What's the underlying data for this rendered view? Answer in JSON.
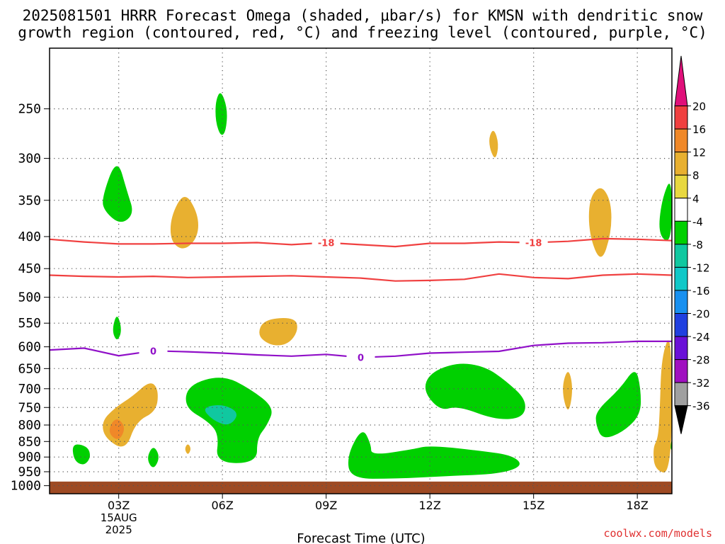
{
  "title_line1": "2025081501 HRRR Forecast Omega (shaded, μbar/s) for KMSN with dendritic snow",
  "title_line2": "growth region (contoured, red, °C) and freezing level (contoured, purple, °C)",
  "credit": "coolwx.com/models",
  "chart_data": {
    "type": "time-height cross section",
    "xlabel": "Forecast Time (UTC)",
    "ylabel": "",
    "x_ticks": [
      {
        "hour": 3,
        "label": "03Z",
        "sub1": "15AUG",
        "sub2": "2025"
      },
      {
        "hour": 6,
        "label": "06Z"
      },
      {
        "hour": 9,
        "label": "09Z"
      },
      {
        "hour": 12,
        "label": "12Z"
      },
      {
        "hour": 15,
        "label": "15Z"
      },
      {
        "hour": 18,
        "label": "18Z"
      }
    ],
    "x_range_hours": [
      1.0,
      19.0
    ],
    "y_levels_hPa": [
      250,
      300,
      350,
      400,
      450,
      500,
      550,
      600,
      650,
      700,
      750,
      800,
      850,
      900,
      950,
      1000
    ],
    "y_scale": "log-pressure, inverted",
    "y_range_hPa": [
      200,
      1030
    ],
    "grid": true,
    "colorbar": {
      "label_values": [
        20,
        16,
        12,
        8,
        4,
        -4,
        -8,
        -12,
        -16,
        -20,
        -24,
        -28,
        -32,
        -36
      ],
      "bins": [
        {
          "from": 20,
          "to": 24,
          "color": "#e0107a"
        },
        {
          "from": 16,
          "to": 20,
          "color": "#f04040"
        },
        {
          "from": 12,
          "to": 16,
          "color": "#f08828"
        },
        {
          "from": 8,
          "to": 12,
          "color": "#e8b030"
        },
        {
          "from": 4,
          "to": 8,
          "color": "#e8d840"
        },
        {
          "from": -4,
          "to": 4,
          "color": "#ffffff"
        },
        {
          "from": -8,
          "to": -4,
          "color": "#00d000"
        },
        {
          "from": -12,
          "to": -8,
          "color": "#10c8a0"
        },
        {
          "from": -16,
          "to": -12,
          "color": "#10c8c8"
        },
        {
          "from": -20,
          "to": -16,
          "color": "#1890f0"
        },
        {
          "from": -24,
          "to": -20,
          "color": "#2040e0"
        },
        {
          "from": -28,
          "to": -24,
          "color": "#6a10d8"
        },
        {
          "from": -32,
          "to": -28,
          "color": "#a010c0"
        },
        {
          "from": -36,
          "to": -32,
          "color": "#a0a0a0"
        },
        {
          "from": -40,
          "to": -36,
          "color": "#000000"
        }
      ]
    },
    "contours": [
      {
        "name": "-18",
        "label": "-18",
        "color": "#f04040",
        "points": [
          [
            1.0,
            404
          ],
          [
            2.0,
            408
          ],
          [
            3.0,
            411
          ],
          [
            4.0,
            411
          ],
          [
            5.0,
            410
          ],
          [
            6.0,
            410
          ],
          [
            7.0,
            409
          ],
          [
            8.0,
            412
          ],
          [
            9.0,
            409
          ],
          [
            10.0,
            412
          ],
          [
            11.0,
            415
          ],
          [
            12.0,
            410
          ],
          [
            13.0,
            410
          ],
          [
            14.0,
            408
          ],
          [
            15.0,
            409
          ],
          [
            16.0,
            407
          ],
          [
            17.0,
            403
          ],
          [
            18.0,
            404
          ],
          [
            19.0,
            406
          ]
        ],
        "label_hours": [
          9.0,
          15.0
        ]
      },
      {
        "name": "-12",
        "label": "",
        "color": "#f04040",
        "points": [
          [
            1.0,
            461
          ],
          [
            2.0,
            463
          ],
          [
            3.0,
            464
          ],
          [
            4.0,
            463
          ],
          [
            5.0,
            465
          ],
          [
            6.0,
            464
          ],
          [
            7.0,
            463
          ],
          [
            8.0,
            462
          ],
          [
            9.0,
            464
          ],
          [
            10.0,
            466
          ],
          [
            11.0,
            471
          ],
          [
            12.0,
            470
          ],
          [
            13.0,
            468
          ],
          [
            14.0,
            459
          ],
          [
            15.0,
            465
          ],
          [
            16.0,
            467
          ],
          [
            17.0,
            461
          ],
          [
            18.0,
            459
          ],
          [
            19.0,
            461
          ]
        ],
        "label_hours": []
      },
      {
        "name": "0",
        "label": "0",
        "color": "#9010c8",
        "points": [
          [
            1.0,
            607
          ],
          [
            2.0,
            603
          ],
          [
            3.0,
            620
          ],
          [
            4.0,
            609
          ],
          [
            5.0,
            611
          ],
          [
            6.0,
            614
          ],
          [
            7.0,
            618
          ],
          [
            8.0,
            621
          ],
          [
            9.0,
            617
          ],
          [
            10.0,
            624
          ],
          [
            11.0,
            621
          ],
          [
            12.0,
            614
          ],
          [
            13.0,
            612
          ],
          [
            14.0,
            610
          ],
          [
            15.0,
            597
          ],
          [
            16.0,
            592
          ],
          [
            17.0,
            591
          ],
          [
            18.0,
            588
          ],
          [
            19.0,
            588
          ]
        ],
        "label_hours": [
          4.0,
          10.0
        ]
      }
    ],
    "shaded_regions": [
      {
        "bin": -8,
        "points": [
          [
            2.95,
            298
          ],
          [
            3.25,
            340
          ],
          [
            3.45,
            368
          ],
          [
            3.05,
            383
          ],
          [
            2.6,
            365
          ],
          [
            2.5,
            348
          ]
        ]
      },
      {
        "bin": -8,
        "points": [
          [
            5.95,
            233
          ],
          [
            6.15,
            250
          ],
          [
            6.1,
            272
          ],
          [
            5.95,
            277
          ],
          [
            5.8,
            262
          ],
          [
            5.8,
            243
          ]
        ]
      },
      {
        "bin": 8,
        "points": [
          [
            4.9,
            338
          ],
          [
            5.3,
            368
          ],
          [
            5.3,
            400
          ],
          [
            4.9,
            422
          ],
          [
            4.5,
            408
          ],
          [
            4.5,
            372
          ]
        ]
      },
      {
        "bin": 8,
        "points": [
          [
            13.85,
            268
          ],
          [
            14.0,
            285
          ],
          [
            13.9,
            302
          ],
          [
            13.75,
            292
          ],
          [
            13.7,
            278
          ]
        ]
      },
      {
        "bin": 8,
        "points": [
          [
            16.95,
            330
          ],
          [
            17.25,
            352
          ],
          [
            17.25,
            395
          ],
          [
            16.95,
            443
          ],
          [
            16.6,
            397
          ],
          [
            16.6,
            348
          ]
        ]
      },
      {
        "bin": -8,
        "points": [
          [
            19.0,
            318
          ],
          [
            19.0,
            412
          ],
          [
            18.6,
            398
          ],
          [
            18.7,
            350
          ]
        ]
      },
      {
        "bin": 8,
        "points": [
          [
            7.2,
            542
          ],
          [
            8.1,
            538
          ],
          [
            8.2,
            565
          ],
          [
            7.9,
            595
          ],
          [
            7.4,
            598
          ],
          [
            7.0,
            575
          ]
        ]
      },
      {
        "bin": -8,
        "points": [
          [
            2.95,
            528
          ],
          [
            3.1,
            565
          ],
          [
            2.95,
            590
          ],
          [
            2.8,
            565
          ]
        ]
      },
      {
        "bin": 8,
        "points": [
          [
            3.9,
            680
          ],
          [
            4.15,
            700
          ],
          [
            4.1,
            760
          ],
          [
            3.5,
            790
          ],
          [
            3.2,
            880
          ],
          [
            2.6,
            840
          ],
          [
            2.5,
            790
          ],
          [
            2.9,
            750
          ],
          [
            3.4,
            720
          ]
        ]
      },
      {
        "bin": 12,
        "points": [
          [
            3.0,
            780
          ],
          [
            3.2,
            810
          ],
          [
            3.0,
            850
          ],
          [
            2.7,
            825
          ],
          [
            2.8,
            790
          ]
        ]
      },
      {
        "bin": -8,
        "points": [
          [
            5.0,
            690
          ],
          [
            6.0,
            665
          ],
          [
            6.8,
            700
          ],
          [
            7.5,
            750
          ],
          [
            7.3,
            800
          ],
          [
            7.0,
            840
          ],
          [
            7.0,
            920
          ],
          [
            5.8,
            920
          ],
          [
            5.9,
            830
          ],
          [
            5.6,
            790
          ],
          [
            4.9,
            750
          ]
        ]
      },
      {
        "bin": -12,
        "points": [
          [
            5.4,
            750
          ],
          [
            6.0,
            740
          ],
          [
            6.5,
            765
          ],
          [
            6.2,
            805
          ],
          [
            5.7,
            785
          ]
        ]
      },
      {
        "bin": -8,
        "points": [
          [
            1.65,
            855
          ],
          [
            2.1,
            865
          ],
          [
            2.2,
            900
          ],
          [
            2.0,
            930
          ],
          [
            1.7,
            912
          ]
        ]
      },
      {
        "bin": -8,
        "points": [
          [
            4.0,
            860
          ],
          [
            4.2,
            900
          ],
          [
            4.0,
            945
          ],
          [
            3.8,
            905
          ]
        ]
      },
      {
        "bin": 8,
        "points": [
          [
            5.0,
            855
          ],
          [
            5.1,
            873
          ],
          [
            5.0,
            895
          ],
          [
            4.9,
            873
          ]
        ]
      },
      {
        "bin": -8,
        "points": [
          [
            10.05,
            805
          ],
          [
            10.3,
            860
          ],
          [
            10.3,
            895
          ],
          [
            11.5,
            875
          ],
          [
            12.0,
            862
          ],
          [
            13.5,
            880
          ],
          [
            14.4,
            895
          ],
          [
            14.7,
            930
          ],
          [
            14.0,
            958
          ],
          [
            12.5,
            965
          ],
          [
            11.0,
            975
          ],
          [
            9.7,
            975
          ],
          [
            9.6,
            895
          ]
        ]
      },
      {
        "bin": -8,
        "points": [
          [
            12.8,
            635
          ],
          [
            13.6,
            645
          ],
          [
            14.2,
            680
          ],
          [
            14.8,
            730
          ],
          [
            14.7,
            780
          ],
          [
            13.9,
            785
          ],
          [
            12.8,
            745
          ],
          [
            12.3,
            760
          ],
          [
            11.8,
            705
          ],
          [
            12.0,
            660
          ]
        ]
      },
      {
        "bin": 8,
        "points": [
          [
            16.0,
            645
          ],
          [
            16.15,
            700
          ],
          [
            16.0,
            775
          ],
          [
            15.8,
            700
          ]
        ]
      },
      {
        "bin": -8,
        "points": [
          [
            17.95,
            645
          ],
          [
            18.1,
            700
          ],
          [
            18.1,
            770
          ],
          [
            17.6,
            820
          ],
          [
            17.0,
            845
          ],
          [
            16.8,
            800
          ],
          [
            16.8,
            760
          ],
          [
            17.5,
            700
          ]
        ]
      },
      {
        "bin": 8,
        "points": [
          [
            19.0,
            562
          ],
          [
            19.0,
            960
          ],
          [
            18.5,
            945
          ],
          [
            18.45,
            870
          ],
          [
            18.6,
            840
          ],
          [
            18.65,
            760
          ],
          [
            18.7,
            620
          ]
        ]
      },
      {
        "bin": -8,
        "points": [
          [
            19.0,
            840
          ],
          [
            19.0,
            880
          ],
          [
            18.95,
            870
          ]
        ]
      }
    ],
    "ground_level_hPa": 985
  }
}
